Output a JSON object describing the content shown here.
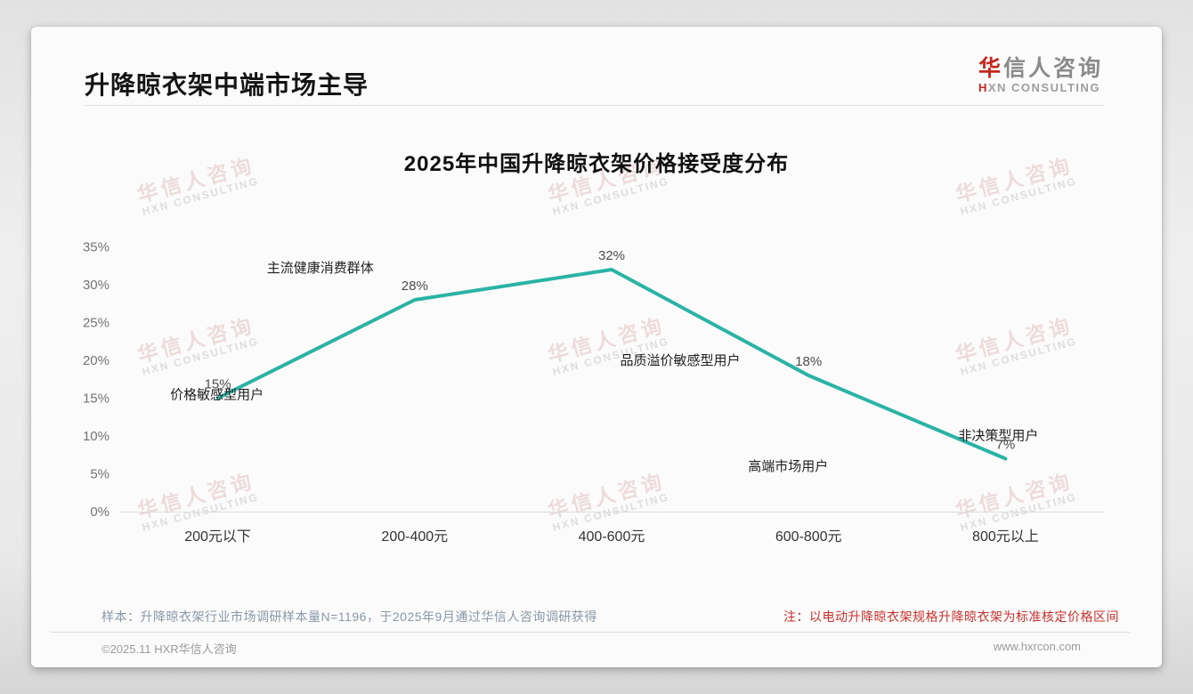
{
  "page": {
    "title": "升降晾衣架中端市场主导",
    "logo": {
      "cn_first": "华",
      "cn_rest": "信人咨询",
      "en_first": "H",
      "en_rest": "XN CONSULTING"
    },
    "watermark": {
      "line1": "华信人咨询",
      "line2": "HXN CONSULTING"
    }
  },
  "chart_data": {
    "type": "line",
    "title": "2025年中国升降晾衣架价格接受度分布",
    "categories": [
      "200元以下",
      "200-400元",
      "400-600元",
      "600-800元",
      "800元以上"
    ],
    "values": [
      15,
      28,
      32,
      18,
      7
    ],
    "value_labels": [
      "15%",
      "28%",
      "32%",
      "18%",
      "7%"
    ],
    "annotations": [
      "价格敏感型用户",
      "主流健康消费群体",
      "品质溢价敏感型用户",
      "高端市场用户",
      "非决策型用户"
    ],
    "xlabel": "",
    "ylabel": "",
    "ylim": [
      0,
      35
    ],
    "ytick_step": 5,
    "ytick_labels": [
      "0%",
      "5%",
      "10%",
      "15%",
      "20%",
      "25%",
      "30%",
      "35%"
    ],
    "line_color": "#2ab3a5",
    "axis_line_color": "#dddddd",
    "grid": false,
    "legend": "none"
  },
  "footer": {
    "sample_note": "样本：升降晾衣架行业市场调研样本量N=1196，于2025年9月通过华信人咨询调研获得",
    "price_note": "注：以电动升降晾衣架规格升降晾衣架为标准核定价格区间",
    "copyright": "©2025.11 HXR华信人咨询",
    "website": "www.hxrcon.com"
  }
}
